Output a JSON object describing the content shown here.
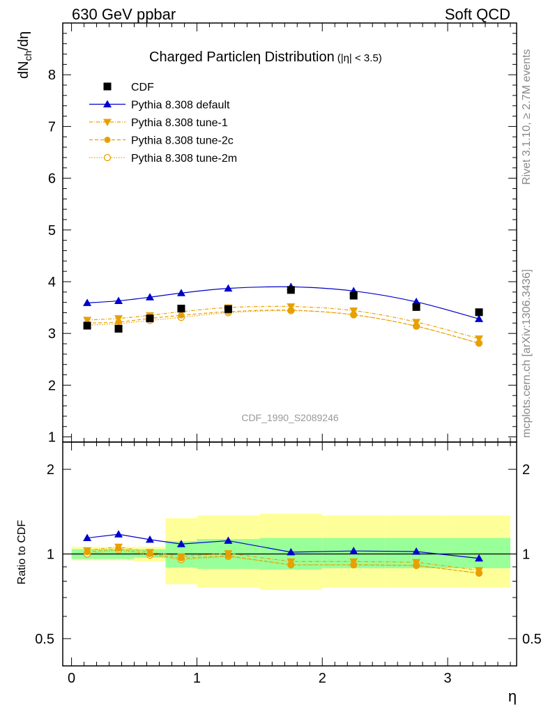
{
  "header": {
    "left": "630 GeV ppbar",
    "right": "Soft QCD"
  },
  "side_text": {
    "rivet": "Rivet 3.1.10, ≥ 2.7M events",
    "mcplots": "mcplots.cern.ch [arXiv:1306.3436]"
  },
  "watermark": "CDF_1990_S2089246",
  "colors": {
    "cdf": "#000000",
    "default": "#0000cc",
    "tune": "#e8a000",
    "band_inner": "#99ff99",
    "band_outer": "#ffff99"
  },
  "chart_data": [
    {
      "type": "line",
      "title_main": "Charged Particle",
      "title_eta": "η",
      "title_rest": " Distribution",
      "title_cut": "(|η| < 3.5)",
      "ylabel_base": "dN",
      "ylabel_sub": "ch",
      "ylabel_tail": "/dη",
      "ylim": [
        0.9,
        9.0
      ],
      "yticks": [
        1,
        2,
        3,
        4,
        5,
        6,
        7,
        8
      ],
      "ytick_labels": [
        "1",
        "2",
        "3",
        "4",
        "5",
        "6",
        "7",
        "8"
      ],
      "xlim": [
        -0.07,
        3.55
      ],
      "legend_position": "top-left",
      "series": [
        {
          "name": "CDF",
          "style": "data",
          "x": [
            0.125,
            0.375,
            0.625,
            0.875,
            1.25,
            1.75,
            2.25,
            2.75,
            3.25
          ],
          "values": [
            3.15,
            3.09,
            3.29,
            3.48,
            3.47,
            3.84,
            3.73,
            3.51,
            3.41
          ]
        },
        {
          "name": "Pythia 8.308 default",
          "style": "default",
          "x": [
            0.125,
            0.375,
            0.625,
            0.875,
            1.25,
            1.75,
            2.25,
            2.75,
            3.25
          ],
          "values": [
            3.59,
            3.63,
            3.7,
            3.78,
            3.87,
            3.9,
            3.82,
            3.61,
            3.28
          ]
        },
        {
          "name": "Pythia 8.308 tune-1",
          "style": "tune1",
          "x": [
            0.125,
            0.375,
            0.625,
            0.875,
            1.25,
            1.75,
            2.25,
            2.75,
            3.25
          ],
          "values": [
            3.26,
            3.29,
            3.35,
            3.42,
            3.5,
            3.52,
            3.44,
            3.22,
            2.9
          ]
        },
        {
          "name": "Pythia 8.308 tune-2c",
          "style": "tune2c",
          "x": [
            0.125,
            0.375,
            0.625,
            0.875,
            1.25,
            1.75,
            2.25,
            2.75,
            3.25
          ],
          "values": [
            3.2,
            3.22,
            3.29,
            3.35,
            3.42,
            3.45,
            3.36,
            3.14,
            2.81
          ]
        },
        {
          "name": "Pythia 8.308 tune-2m",
          "style": "tune2m",
          "x": [
            0.125,
            0.375,
            0.625,
            0.875,
            1.25,
            1.75,
            2.25,
            2.75,
            3.25
          ],
          "values": [
            3.16,
            3.19,
            3.25,
            3.31,
            3.4,
            3.44,
            3.36,
            3.14,
            2.81
          ]
        }
      ]
    },
    {
      "type": "line",
      "ylabel": "Ratio to CDF",
      "xlabel": "η",
      "log_y": true,
      "ylim": [
        0.4,
        2.5
      ],
      "yticks": [
        0.5,
        1,
        2
      ],
      "ytick_labels": [
        "0.5",
        "1",
        "2"
      ],
      "xlim": [
        -0.07,
        3.55
      ],
      "xticks": [
        0,
        1,
        2,
        3
      ],
      "xtick_labels": [
        "0",
        "1",
        "2",
        "3"
      ],
      "bands": {
        "edges": [
          0,
          0.5,
          0.75,
          1,
          1.5,
          2,
          2.5,
          3,
          3.5
        ],
        "inner_low": [
          0.96,
          0.97,
          0.895,
          0.885,
          0.88,
          0.89,
          0.89,
          0.89,
          0.845
        ],
        "inner_high": [
          1.04,
          1.04,
          1.11,
          1.13,
          1.14,
          1.14,
          1.14,
          1.14,
          1.2
        ],
        "outer_low": [
          0.95,
          0.94,
          0.78,
          0.76,
          0.745,
          0.76,
          0.76,
          0.76,
          0.66
        ],
        "outer_high": [
          1.06,
          1.06,
          1.34,
          1.37,
          1.39,
          1.37,
          1.37,
          1.37,
          1.48
        ]
      },
      "series": [
        {
          "name": "Pythia 8.308 default",
          "style": "default",
          "x": [
            0.125,
            0.375,
            0.625,
            0.875,
            1.25,
            1.75,
            2.25,
            2.75,
            3.25
          ],
          "values": [
            1.14,
            1.175,
            1.125,
            1.085,
            1.115,
            1.015,
            1.025,
            1.02,
            0.965
          ]
        },
        {
          "name": "Pythia 8.308 tune-1",
          "style": "tune1",
          "x": [
            0.125,
            0.375,
            0.625,
            0.875,
            1.25,
            1.75,
            2.25,
            2.75,
            3.25
          ],
          "values": [
            1.03,
            1.06,
            1.015,
            0.98,
            1.005,
            0.94,
            0.94,
            0.935,
            0.875
          ]
        },
        {
          "name": "Pythia 8.308 tune-2c",
          "style": "tune2c",
          "x": [
            0.125,
            0.375,
            0.625,
            0.875,
            1.25,
            1.75,
            2.25,
            2.75,
            3.25
          ],
          "values": [
            1.015,
            1.045,
            1.0,
            0.965,
            0.985,
            0.915,
            0.915,
            0.91,
            0.855
          ]
        },
        {
          "name": "Pythia 8.308 tune-2m",
          "style": "tune2m",
          "x": [
            0.125,
            0.375,
            0.625,
            0.875,
            1.25,
            1.75,
            2.25,
            2.75,
            3.25
          ],
          "values": [
            1.0,
            1.035,
            0.99,
            0.955,
            0.98,
            0.915,
            0.915,
            0.91,
            0.855
          ]
        }
      ]
    }
  ]
}
